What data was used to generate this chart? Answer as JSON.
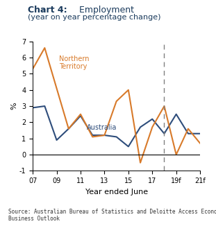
{
  "title_bold": "Chart 4:",
  "title_normal": " Employment",
  "subtitle": "(year on year percentage change)",
  "ylabel": "%",
  "xlabel": "Year ended June",
  "source": "Source: Australian Bureau of Statistics and Deloitte Access Economics\nBusiness Outlook",
  "aus_x": [
    7,
    8,
    9,
    10,
    11,
    12,
    13,
    14,
    15,
    16,
    17,
    18,
    19,
    20,
    21
  ],
  "aus_y": [
    2.9,
    3.0,
    0.9,
    1.6,
    2.4,
    1.2,
    1.2,
    1.1,
    0.5,
    1.7,
    2.2,
    1.3,
    2.5,
    1.3,
    1.3
  ],
  "nt_x": [
    7,
    8,
    10,
    11,
    12,
    13,
    14,
    15,
    16,
    17,
    18,
    19,
    20,
    21
  ],
  "nt_y": [
    5.3,
    6.6,
    1.6,
    2.5,
    1.1,
    1.2,
    3.3,
    4.0,
    -0.5,
    1.7,
    3.0,
    0.0,
    1.6,
    0.7
  ],
  "australia_color": "#2e4d7b",
  "nt_color": "#d87a2a",
  "dashed_line_x": 18,
  "ylim": [
    -1,
    7
  ],
  "yticks": [
    -1,
    0,
    1,
    2,
    3,
    4,
    5,
    6,
    7
  ],
  "ytick_labels": [
    "-1",
    "0",
    "1",
    "2",
    "3",
    "4",
    "5",
    "6",
    "7"
  ],
  "xtick_vals": [
    7,
    9,
    11,
    13,
    15,
    17,
    19,
    21
  ],
  "xtick_labels": [
    "07",
    "09",
    "11",
    "13",
    "15",
    "17",
    "19f",
    "21f"
  ]
}
